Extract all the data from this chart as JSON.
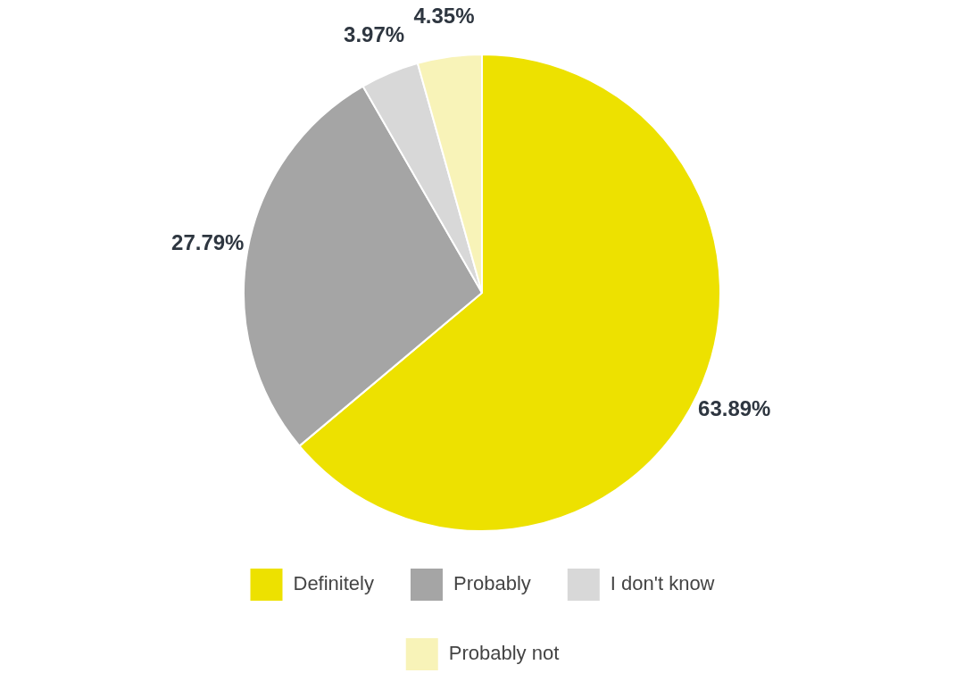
{
  "chart_data": {
    "type": "pie",
    "categories": [
      "Definitely",
      "Probably",
      "I don't know",
      "Probably not"
    ],
    "values": [
      63.89,
      27.79,
      3.97,
      4.35
    ],
    "colors": [
      "#ede100",
      "#a5a5a5",
      "#d8d8d8",
      "#f8f3b8"
    ],
    "value_labels": [
      "63.89%",
      "27.79%",
      "3.97%",
      "4.35%"
    ],
    "legend": "bottom"
  }
}
